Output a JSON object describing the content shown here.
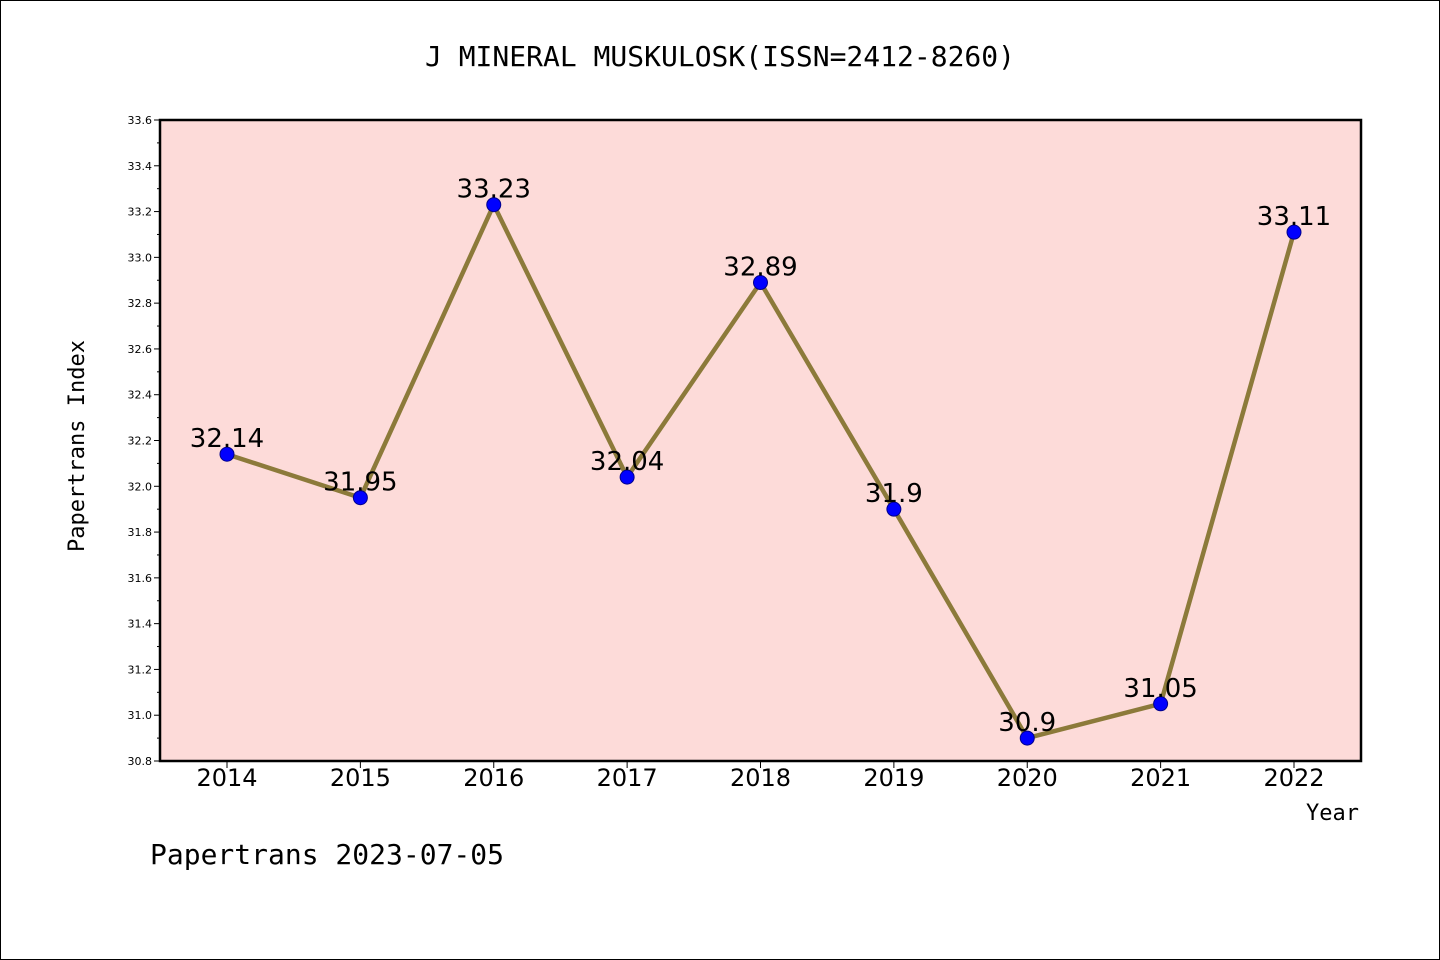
{
  "chart_data": {
    "type": "line",
    "title": "J MINERAL MUSKULOSK(ISSN=2412-8260)",
    "xlabel": "Year",
    "ylabel": "Papertrans Index",
    "categories": [
      "2014",
      "2015",
      "2016",
      "2017",
      "2018",
      "2019",
      "2020",
      "2021",
      "2022"
    ],
    "values": [
      32.14,
      31.95,
      33.23,
      32.04,
      32.89,
      31.9,
      30.9,
      31.05,
      33.11
    ],
    "data_labels": [
      "32.14",
      "31.95",
      "33.23",
      "32.04",
      "32.89",
      "31.9",
      "30.9",
      "31.05",
      "33.11"
    ],
    "ylim": [
      30.8,
      33.6
    ],
    "yticks": [
      "30.8",
      "31.0",
      "31.2",
      "31.4",
      "31.6",
      "31.8",
      "32.0",
      "32.2",
      "32.4",
      "32.6",
      "32.8",
      "33.0",
      "33.2",
      "33.4",
      "33.6"
    ],
    "grid": false,
    "plot_background": "#fddbd9",
    "line_color": "#8c7a3a",
    "marker_color": "#0000ff"
  },
  "footer": "Papertrans 2023-07-05"
}
